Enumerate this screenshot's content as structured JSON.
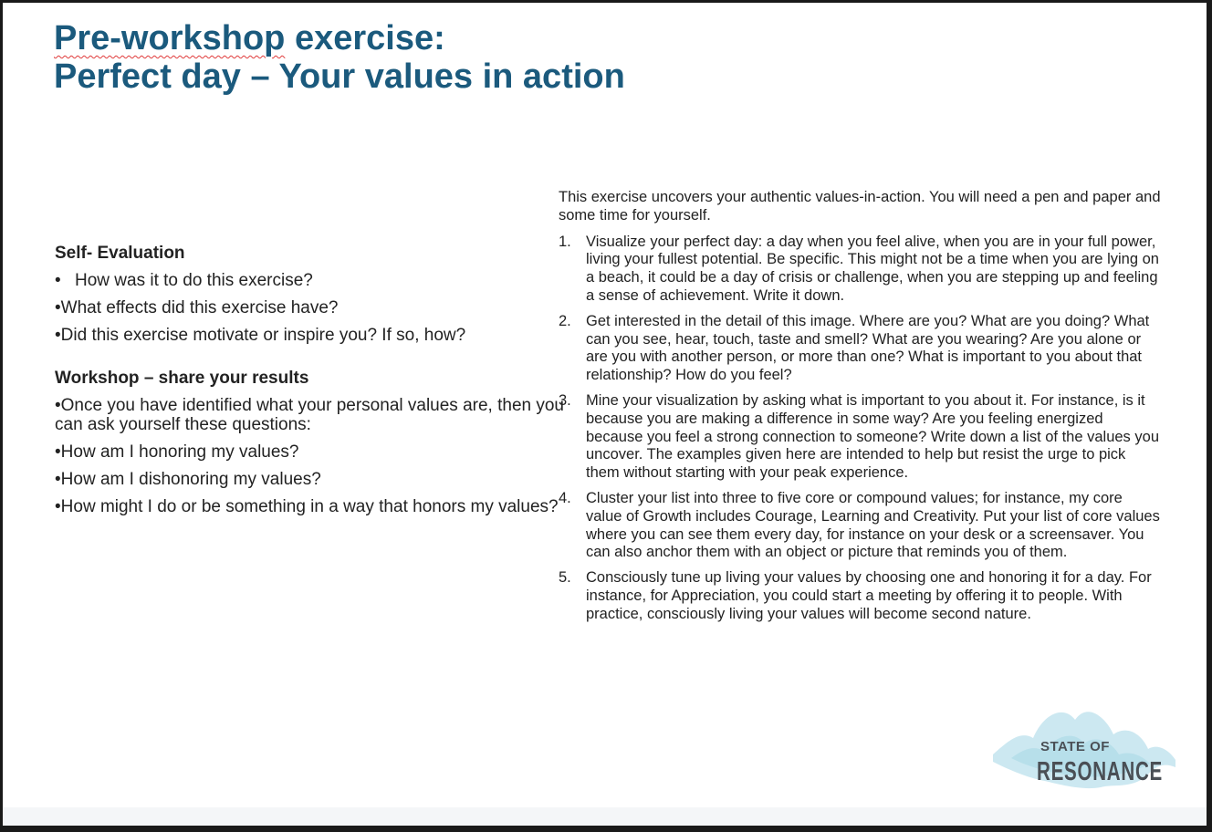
{
  "title": {
    "line1_word1": "Pre-workshop",
    "line1_rest": " exercise:",
    "line2": "Perfect day – Your values in action"
  },
  "left": {
    "self_eval": {
      "heading": "Self- Evaluation",
      "items": [
        "How was it to do this exercise?",
        "•What effects did this exercise have?",
        "•Did this exercise motivate or inspire you? If so, how?"
      ]
    },
    "workshop": {
      "heading": "Workshop – share your results",
      "items": [
        "•Once you have identified what your personal values are, then you can ask yourself these questions:",
        "•How am I honoring my values?",
        "•How am I dishonoring my values?",
        "•How might I do or be something in a way that honors my values?"
      ]
    }
  },
  "right": {
    "intro": "This exercise uncovers your authentic values-in-action. You will need a pen and paper and some time for yourself.",
    "steps": [
      {
        "num": "1.",
        "text": "Visualize your perfect day: a day when you feel alive, when you are in your full power, living your fullest potential. Be specific. This might not be a time when you are lying on a beach, it could be a day of crisis or challenge, when you are stepping up and feeling a sense of achievement. Write it down."
      },
      {
        "num": "2.",
        "text": "Get interested in the detail of this image. Where are you? What are you doing? What can you see, hear, touch, taste and smell? What are you wearing? Are you alone or are you with another person, or more than one? What is important to you about that relationship? How do you feel?"
      },
      {
        "num": "3.",
        "text": "Mine your visualization by asking what is important to you about it. For instance, is it because you are making a difference in some way? Are you feeling energized because you feel a strong connection to someone? Write down a list of the values you uncover. The examples given here are intended to help but resist the urge to pick them without starting with your peak experience."
      },
      {
        "num": "4.",
        "text": "Cluster your list into three to five core or compound values; for instance, my core value of Growth includes Courage, Learning and Creativity. Put your list of core values where you can see them every day, for instance on your desk or a screensaver. You can also anchor them with an object or picture that reminds you of them."
      },
      {
        "num": "5.",
        "text": "Consciously tune up living your values by choosing one and honoring it for a day. For instance, for Appreciation, you could start a meeting by offering it to people. With practice, consciously living your values will become second nature."
      }
    ]
  },
  "logo": {
    "line1": "STATE OF",
    "line2": "RESONANCE",
    "wave_color": "#bfe3ee",
    "text_color": "#4a4f55"
  },
  "colors": {
    "title": "#1b5a7d",
    "body_text": "#222222"
  }
}
